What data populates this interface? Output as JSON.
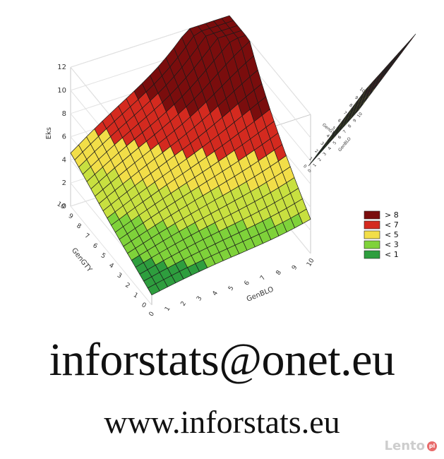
{
  "chart_data": [
    {
      "type": "surface",
      "title": "",
      "xlabel": "GenBLO",
      "ylabel": "GenGTY",
      "zlabel": "Eks",
      "xlim": [
        0,
        10
      ],
      "ylim": [
        0,
        10
      ],
      "zlim": [
        0,
        12
      ],
      "x_ticks": [
        "0",
        "1",
        "2",
        "3",
        "4",
        "5",
        "6",
        "7",
        "8",
        "9",
        "10"
      ],
      "y_ticks": [
        "0",
        "1",
        "2",
        "3",
        "4",
        "5",
        "6",
        "7",
        "8",
        "9",
        "10"
      ],
      "z_ticks": [
        "0",
        "2",
        "4",
        "6",
        "8",
        "10",
        "12"
      ],
      "grid": true,
      "surface_anchor_points": [
        {
          "x": 0,
          "y": 0,
          "z": 1
        },
        {
          "x": 10,
          "y": 0,
          "z": 2
        },
        {
          "x": 10,
          "y": 10,
          "z": 12
        },
        {
          "x": 0,
          "y": 10,
          "z": 5
        },
        {
          "x": 5,
          "y": 5,
          "z": 4
        }
      ],
      "legend": {
        "placement": "right",
        "entries": [
          {
            "label": "> 8",
            "color": "#7a0d0d"
          },
          {
            "label": "< 7",
            "color": "#d42a1f"
          },
          {
            "label": "< 5",
            "color": "#f2de48"
          },
          {
            "label": "< 3",
            "color": "#7fd23a"
          },
          {
            "label": "< 1",
            "color": "#2e9e3e"
          }
        ]
      }
    },
    {
      "type": "contour",
      "title": "",
      "xlabel": "GenBLO",
      "ylabel": "GenGTY",
      "xlim": [
        0,
        10
      ],
      "ylim": [
        0,
        10
      ],
      "x_ticks": [
        "0",
        "1",
        "2",
        "3",
        "4",
        "5",
        "6",
        "7",
        "8",
        "9",
        "10"
      ],
      "y_ticks": [
        "0",
        "1",
        "2",
        "3",
        "4",
        "5",
        "6",
        "7",
        "8",
        "9",
        "10"
      ]
    }
  ],
  "footer": {
    "email": "inforstats@onet.eu",
    "website": "www.inforstats.eu",
    "watermark": "Lento",
    "watermark_badge": "pl"
  }
}
